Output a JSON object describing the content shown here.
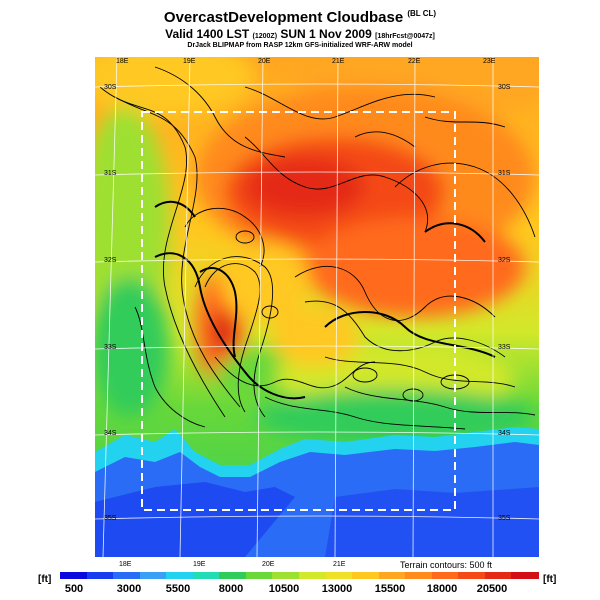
{
  "title": {
    "main": "OvercastDevelopment Cloudbase",
    "qualifier": "(BL CL)"
  },
  "subtitle": {
    "prefix": "Valid 1400 LST",
    "zulu": "(1200Z)",
    "day": "SUN 1 Nov 2009",
    "forecast": "[18hrFcst@0047z]"
  },
  "credit": "DrJack BLIPMAP from RASP 12km GFS-initialized WRF-ARW model",
  "axes": {
    "lon_top": [
      "18E",
      "19E",
      "20E",
      "21E",
      "22E",
      "23E"
    ],
    "lon_bottom": [
      "18E",
      "19E",
      "20E",
      "21E"
    ],
    "lat_left": [
      "30S",
      "31S",
      "32S",
      "33S",
      "34S",
      "35S"
    ],
    "lat_right": [
      "30S",
      "31S",
      "32S",
      "33S",
      "34S",
      "35S"
    ]
  },
  "terrain_note": "Terrain contours: 500 ft",
  "colorbar": {
    "unit_left": "[ft]",
    "unit_right": "[ft]",
    "labels": [
      "500",
      "3000",
      "5500",
      "8000",
      "10500",
      "13000",
      "15500",
      "18000",
      "20500"
    ],
    "colors": [
      "#0a0adc",
      "#1a3cf0",
      "#2a6cf5",
      "#3aa0f5",
      "#22d2ee",
      "#22ddb4",
      "#30cc5a",
      "#68d83a",
      "#9ee030",
      "#d2e82a",
      "#f0e026",
      "#ffc820",
      "#ffa620",
      "#ff8a1e",
      "#ff6a1a",
      "#f44a18",
      "#e42a16",
      "#d40e16"
    ]
  }
}
